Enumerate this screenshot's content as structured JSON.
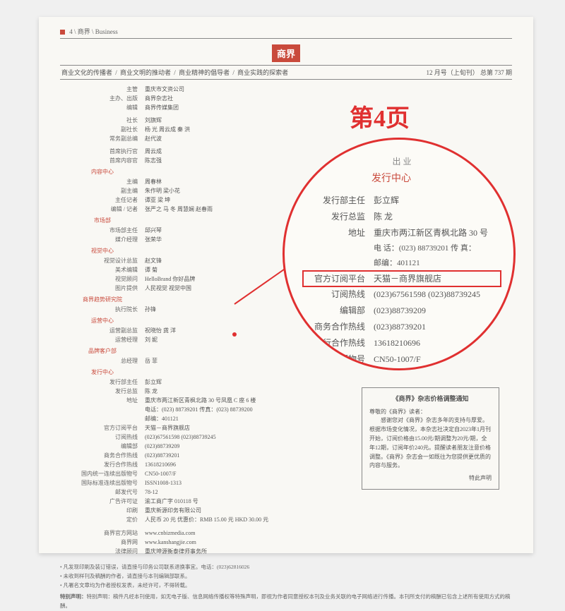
{
  "colors": {
    "accent": "#c94a3c",
    "highlight": "#e03030",
    "text": "#555555",
    "paper": "#f9f8f4"
  },
  "top": {
    "pageno": "4",
    "path": "商界",
    "path_en": "Business"
  },
  "logo": "商界",
  "taglines": [
    "商业文化的传播者",
    "商业文明的推动者",
    "商业精神的倡导者",
    "商业实践的探索者"
  ],
  "issue": "12 月号（上旬刊） 总第 737 期",
  "masthead": [
    {
      "lbl": "主管",
      "val": "重庆市文资公司"
    },
    {
      "lbl": "主办、出版",
      "val": "商界杂志社"
    },
    {
      "lbl": "编辑",
      "val": "商界传媒集团"
    }
  ],
  "leaders": [
    {
      "lbl": "社长",
      "val": "刘旗辉"
    },
    {
      "lbl": "副社长",
      "val": "杨  光  周云成  秦  洪"
    },
    {
      "lbl": "常务副总编",
      "val": "赵代波"
    }
  ],
  "chief": [
    {
      "lbl": "首席执行官",
      "val": "周云成"
    },
    {
      "lbl": "首席内容官",
      "val": "陈志强"
    }
  ],
  "sections": {
    "content_center": {
      "title": "内容中心",
      "rows": [
        {
          "lbl": "主编",
          "val": "周春林"
        },
        {
          "lbl": "副主编",
          "val": "朱作明  梁小花"
        },
        {
          "lbl": "主任记者",
          "val": "谭亚  梁  坤"
        },
        {
          "lbl": "编辑 / 记者",
          "val": "张严之  马  冬  周慧娴  赵春雨"
        }
      ]
    },
    "market_dept": {
      "title": "市场部",
      "rows": [
        {
          "lbl": "市场部主任",
          "val": "邱兴琴"
        },
        {
          "lbl": "媒介经理",
          "val": "张荣华"
        }
      ]
    },
    "visual": {
      "title": "视觉中心",
      "rows": [
        {
          "lbl": "视觉设计总监",
          "val": "赵文锋"
        },
        {
          "lbl": "美术编辑",
          "val": "谭  菊"
        },
        {
          "lbl": "视觉顾问",
          "val": "HelloBrand 你好品牌"
        },
        {
          "lbl": "图片提供",
          "val": "人民视觉  视觉中国"
        }
      ]
    },
    "trend": {
      "title": "商界趋势研究院",
      "rows": [
        {
          "lbl": "执行院长",
          "val": "孙锋"
        }
      ]
    },
    "ops": {
      "title": "运营中心",
      "rows": [
        {
          "lbl": "运营副总监",
          "val": "祝晓怡  龚  洋"
        },
        {
          "lbl": "运营经理",
          "val": "刘  妮"
        }
      ]
    },
    "brand": {
      "title": "品牌客户部",
      "rows": [
        {
          "lbl": "总经理",
          "val": "岳  菲"
        }
      ]
    },
    "dist": {
      "title": "发行中心",
      "rows": [
        {
          "lbl": "发行部主任",
          "val": "彭立辉"
        },
        {
          "lbl": "发行总监",
          "val": "陈  龙"
        },
        {
          "lbl": "地址",
          "val": "重庆市两江新区青枫北路 30 号凤凰 C 座 6 楼"
        },
        {
          "lbl": "",
          "val": "电话：(023) 88739201   传真：(023) 88739200"
        },
        {
          "lbl": "",
          "val": "邮编：401121"
        },
        {
          "lbl": "官方订阅平台",
          "val": "天猫－商界旗舰店"
        },
        {
          "lbl": "订阅热线",
          "val": "(023)67561598   (023)88739245"
        },
        {
          "lbl": "编辑部",
          "val": "(023)88739209"
        },
        {
          "lbl": "商务合作热线",
          "val": "(023)88739201"
        },
        {
          "lbl": "发行合作热线",
          "val": "13618210696"
        },
        {
          "lbl": "国内统一连续出版物号",
          "val": "CN50-1007/F"
        },
        {
          "lbl": "国际标准连续出版物号",
          "val": "ISSN1008-1313"
        },
        {
          "lbl": "邮发代号",
          "val": "78-12"
        },
        {
          "lbl": "广告许可证",
          "val": "渝工商广字 010118 号"
        },
        {
          "lbl": "印刷",
          "val": "重庆新源印务有限公司"
        },
        {
          "lbl": "定价",
          "val": "人民币 20 元  优惠价：RMB 15.00 元  HKD 30.00 元"
        }
      ]
    }
  },
  "sites": [
    {
      "lbl": "商界官方网站",
      "val": "www.cnbizmedia.com"
    },
    {
      "lbl": "商界网",
      "val": "www.kanshangjie.com"
    },
    {
      "lbl": "法律顾问",
      "val": "重庆坤源衡泰律师事务所"
    }
  ],
  "footnotes": [
    "凡发现印刷及装订错误，请直接与印务公司联系退换事宜。电话：(023)62816026",
    "未收到样刊及稿酬的作者，请直接与本刊编辑部联系。",
    "凡署名文章均为作者授权发表，未经许可，不得转载。"
  ],
  "special": "特别声明：稿件凡经本刊使用，如无电子版、信息网络传播权等特殊声明，即视为作者同意授权本刊及业务关联的电子网络进行传播。本刊所支付的稿酬已包含上述所有使用方式的稿酬。",
  "callout_title": "第4页",
  "circle": {
    "title": "发行中心",
    "toptext": "出 业",
    "rows": [
      {
        "lbl": "发行部主任",
        "val": "彭立辉"
      },
      {
        "lbl": "发行总监",
        "val": "陈  龙"
      },
      {
        "lbl": "地址",
        "val": "重庆市两江新区青枫北路 30 号"
      },
      {
        "lbl": "",
        "val": "电 话：(023) 88739201   传 真："
      },
      {
        "lbl": "",
        "val": "邮编：401121"
      },
      {
        "lbl": "官方订阅平台",
        "val": "天猫－商界旗舰店",
        "hl": true
      },
      {
        "lbl": "订阅热线",
        "val": "(023)67561598   (023)88739245"
      },
      {
        "lbl": "编辑部",
        "val": "(023)88739209"
      },
      {
        "lbl": "商务合作热线",
        "val": "(023)88739201"
      },
      {
        "lbl": "发行合作热线",
        "val": "13618210696"
      },
      {
        "lbl": "续出版物号",
        "val": "CN50-1007/F"
      },
      {
        "lbl": "出版物号",
        "val": "ISSN1008-1313"
      },
      {
        "lbl": "代号",
        "val": "78-12"
      }
    ]
  },
  "notice": {
    "title": "《商界》杂志价格调整通知",
    "greet": "尊敬的《商界》读者：",
    "body": "感谢您对《商界》杂志多年的支持与厚爱。根据市场变化情况，本杂志社决定自2023年1月刊开始，订阅价格由15.00元/期调整为20元/期，全年12期，订阅年价240元。提醒读者朋友注意价格调整。《商界》杂志会一如既往为您提供更优质的内容与服务。",
    "sign": "特此声明"
  }
}
